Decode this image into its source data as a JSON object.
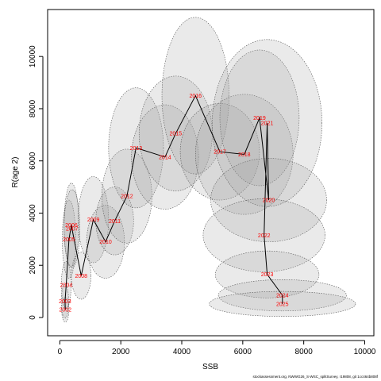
{
  "chart_data": {
    "type": "scatter",
    "xlabel": "SSB",
    "ylabel": "R(age 2)",
    "xlim": [
      -400,
      10300
    ],
    "ylim": [
      -700,
      11800
    ],
    "x_ticks": [
      0,
      2000,
      4000,
      6000,
      8000,
      10000
    ],
    "y_ticks": [
      0,
      2000,
      4000,
      6000,
      8000,
      10000
    ],
    "label_color": "#ff0000",
    "ellipse_fill": "#9e9e9e",
    "points": [
      {
        "year": "2002",
        "ssb": 180,
        "r": 300,
        "sx": 120,
        "sy": 480
      },
      {
        "year": "2003",
        "ssb": 170,
        "r": 620,
        "sx": 120,
        "sy": 650
      },
      {
        "year": "2004",
        "ssb": 210,
        "r": 1250,
        "sx": 160,
        "sy": 900
      },
      {
        "year": "2005",
        "ssb": 300,
        "r": 3000,
        "sx": 220,
        "sy": 1500
      },
      {
        "year": "2006",
        "ssb": 380,
        "r": 3550,
        "sx": 240,
        "sy": 1600
      },
      {
        "year": "2007",
        "ssb": 400,
        "r": 3400,
        "sx": 260,
        "sy": 1500
      },
      {
        "year": "2008",
        "ssb": 700,
        "r": 1600,
        "sx": 320,
        "sy": 900
      },
      {
        "year": "2009",
        "ssb": 1100,
        "r": 3750,
        "sx": 500,
        "sy": 1650
      },
      {
        "year": "2010",
        "ssb": 1500,
        "r": 2900,
        "sx": 620,
        "sy": 1400
      },
      {
        "year": "2011",
        "ssb": 1800,
        "r": 3700,
        "sx": 620,
        "sy": 1300
      },
      {
        "year": "2012",
        "ssb": 2200,
        "r": 4650,
        "sx": 820,
        "sy": 1800
      },
      {
        "year": "2013",
        "ssb": 2500,
        "r": 6500,
        "sx": 900,
        "sy": 2300
      },
      {
        "year": "2014",
        "ssb": 3450,
        "r": 6150,
        "sx": 1100,
        "sy": 2000
      },
      {
        "year": "2015",
        "ssb": 3800,
        "r": 7050,
        "sx": 1200,
        "sy": 2200
      },
      {
        "year": "2016",
        "ssb": 4450,
        "r": 8500,
        "sx": 1100,
        "sy": 3000
      },
      {
        "year": "2017",
        "ssb": 5250,
        "r": 6350,
        "sx": 1300,
        "sy": 1850
      },
      {
        "year": "2018",
        "ssb": 6050,
        "r": 6250,
        "sx": 1600,
        "sy": 2300
      },
      {
        "year": "2019",
        "ssb": 6550,
        "r": 7650,
        "sx": 1300,
        "sy": 2600
      },
      {
        "year": "2020",
        "ssb": 6850,
        "r": 4500,
        "sx": 1900,
        "sy": 1600
      },
      {
        "year": "2021",
        "ssb": 6800,
        "r": 7450,
        "sx": 1800,
        "sy": 3200
      },
      {
        "year": "2022",
        "ssb": 6700,
        "r": 3150,
        "sx": 2000,
        "sy": 1400
      },
      {
        "year": "2023",
        "ssb": 6800,
        "r": 1650,
        "sx": 1700,
        "sy": 900
      },
      {
        "year": "2024",
        "ssb": 7300,
        "r": 850,
        "sx": 2100,
        "sy": 600
      },
      {
        "year": "2025",
        "ssb": 7300,
        "r": 520,
        "sx": 2400,
        "sy": 480
      }
    ],
    "footer": "stockassessment.org, NWWG26_S-WSC_splitSurvey, r19808, git 1cc464b808f"
  }
}
